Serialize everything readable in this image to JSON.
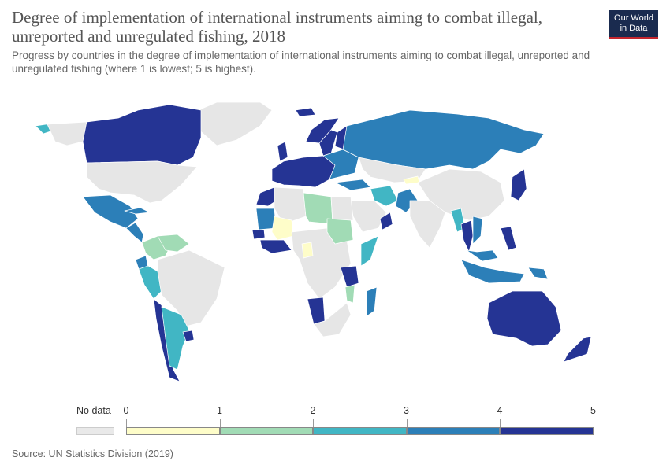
{
  "header": {
    "title": "Degree of implementation of international instruments aiming to combat illegal, unreported and unregulated fishing, 2018",
    "subtitle": "Progress by countries in the degree of implementation of international instruments aiming to combat illegal, unreported and unregulated fishing (where 1 is lowest; 5 is highest).",
    "logo_line1": "Our World",
    "logo_line2": "in Data"
  },
  "legend": {
    "no_data_label": "No data",
    "no_data_color": "#e9e9e9",
    "ticks": [
      "0",
      "1",
      "2",
      "3",
      "4",
      "5"
    ],
    "colors": [
      "#fefdc9",
      "#a1dbb5",
      "#41b6c4",
      "#2c7fb8",
      "#253494"
    ]
  },
  "footer": {
    "source": "Source: UN Statistics Division (2019)"
  },
  "map": {
    "land_color": "#e6e6e6",
    "border_color": "#ffffff",
    "regions": [
      {
        "id": "canada",
        "level": 5
      },
      {
        "id": "usa",
        "level": null
      },
      {
        "id": "alaska",
        "level": 3
      },
      {
        "id": "greenland",
        "level": null
      },
      {
        "id": "mexico",
        "level": 4
      },
      {
        "id": "central-america",
        "level": 4
      },
      {
        "id": "cuba",
        "level": 4
      },
      {
        "id": "colombia",
        "level": 2
      },
      {
        "id": "venezuela",
        "level": 2
      },
      {
        "id": "peru",
        "level": 3
      },
      {
        "id": "ecuador",
        "level": 4
      },
      {
        "id": "brazil",
        "level": null
      },
      {
        "id": "chile",
        "level": 5
      },
      {
        "id": "argentina",
        "level": 3
      },
      {
        "id": "uruguay",
        "level": 5
      },
      {
        "id": "russia",
        "level": 4
      },
      {
        "id": "norway",
        "level": 5
      },
      {
        "id": "sweden",
        "level": 5
      },
      {
        "id": "finland",
        "level": 5
      },
      {
        "id": "iceland",
        "level": 5
      },
      {
        "id": "uk",
        "level": 5
      },
      {
        "id": "western-europe",
        "level": 5
      },
      {
        "id": "eastern-europe",
        "level": 4
      },
      {
        "id": "turkey",
        "level": 4
      },
      {
        "id": "morocco",
        "level": 5
      },
      {
        "id": "algeria",
        "level": null
      },
      {
        "id": "libya",
        "level": 2
      },
      {
        "id": "egypt",
        "level": null
      },
      {
        "id": "mauritania",
        "level": 4
      },
      {
        "id": "mali",
        "level": 1
      },
      {
        "id": "senegal",
        "level": 5
      },
      {
        "id": "west-africa-coast",
        "level": 5
      },
      {
        "id": "sudan",
        "level": 2
      },
      {
        "id": "somalia",
        "level": 3
      },
      {
        "id": "cameroon",
        "level": 1
      },
      {
        "id": "tanzania",
        "level": 5
      },
      {
        "id": "mozambique",
        "level": 2
      },
      {
        "id": "namibia",
        "level": 5
      },
      {
        "id": "south-africa",
        "level": null
      },
      {
        "id": "madagascar",
        "level": 4
      },
      {
        "id": "saudi-arabia",
        "level": null
      },
      {
        "id": "oman",
        "level": 5
      },
      {
        "id": "iran",
        "level": 3
      },
      {
        "id": "pakistan",
        "level": 4
      },
      {
        "id": "kazakhstan",
        "level": null
      },
      {
        "id": "kyrgyzstan",
        "level": 1
      },
      {
        "id": "india",
        "level": null
      },
      {
        "id": "china",
        "level": null
      },
      {
        "id": "myanmar",
        "level": 3
      },
      {
        "id": "thailand",
        "level": 5
      },
      {
        "id": "vietnam",
        "level": 4
      },
      {
        "id": "malaysia",
        "level": 4
      },
      {
        "id": "indonesia",
        "level": 4
      },
      {
        "id": "philippines",
        "level": 5
      },
      {
        "id": "japan",
        "level": 5
      },
      {
        "id": "png",
        "level": 4
      },
      {
        "id": "australia",
        "level": 5
      },
      {
        "id": "new-zealand",
        "level": 5
      }
    ]
  }
}
